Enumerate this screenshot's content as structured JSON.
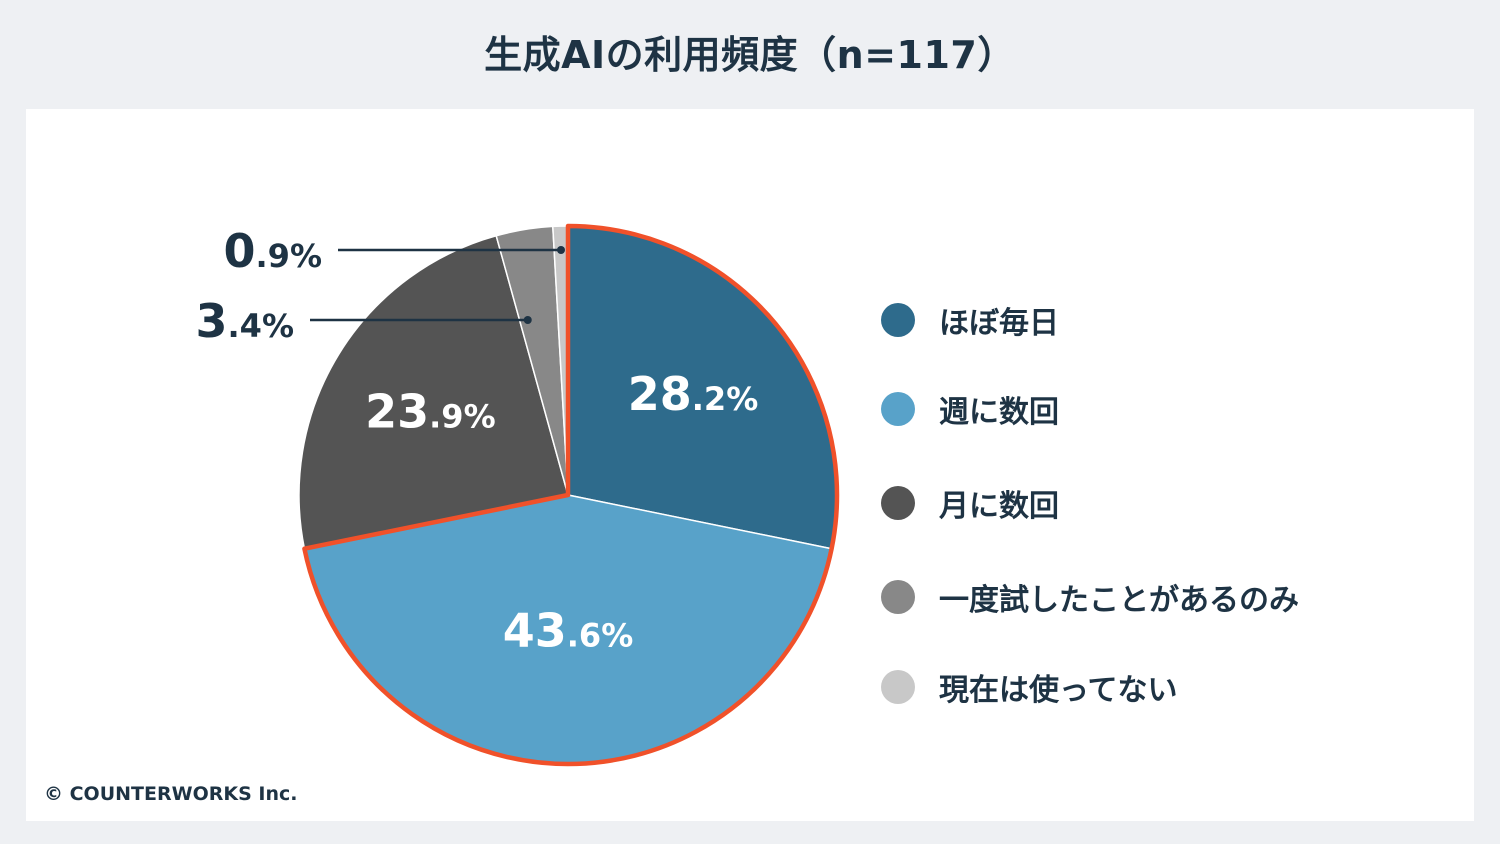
{
  "title": "生成AIの利用頻度（n=117）",
  "copyright": "© COUNTERWORKS Inc.",
  "colors": {
    "background": "#eef0f3",
    "card": "#ffffff",
    "text": "#1e3344",
    "highlight_border": "#f0512a"
  },
  "chart_data": {
    "type": "pie",
    "title": "生成AIの利用頻度（n=117）",
    "start": "12 o'clock, clockwise",
    "legend_position": "right",
    "slices": [
      {
        "label": "ほぼ毎日",
        "value": 28.2,
        "display_int": "28",
        "display_dec": ".2%",
        "color": "#2e6b8c",
        "highlighted": true,
        "label_position": "inside"
      },
      {
        "label": "週に数回",
        "value": 43.6,
        "display_int": "43",
        "display_dec": ".6%",
        "color": "#58a2c9",
        "highlighted": true,
        "label_position": "inside"
      },
      {
        "label": "月に数回",
        "value": 23.9,
        "display_int": "23",
        "display_dec": ".9%",
        "color": "#545454",
        "highlighted": false,
        "label_position": "inside"
      },
      {
        "label": "一度試したことがあるのみ",
        "value": 3.4,
        "display_int": "3",
        "display_dec": ".4%",
        "color": "#888888",
        "highlighted": false,
        "label_position": "outside"
      },
      {
        "label": "現在は使ってない",
        "value": 0.9,
        "display_int": "0",
        "display_dec": ".9%",
        "color": "#c8c8c8",
        "highlighted": false,
        "label_position": "outside"
      }
    ]
  }
}
